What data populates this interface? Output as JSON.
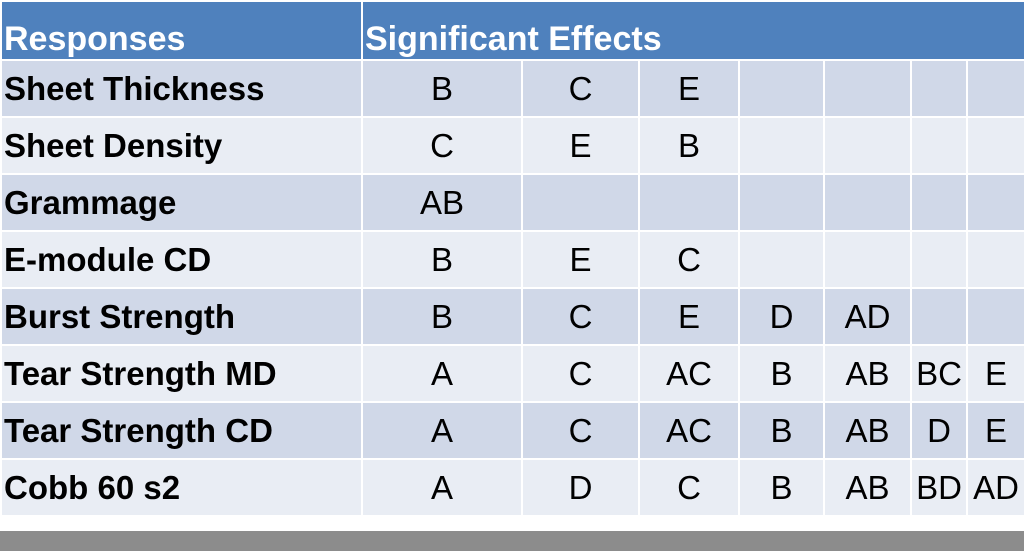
{
  "header": {
    "col1": "Responses",
    "col2": "Significant Effects"
  },
  "rows": [
    {
      "label": "Sheet Thickness",
      "effects": [
        "B",
        "C",
        "E",
        "",
        "",
        "",
        ""
      ]
    },
    {
      "label": "Sheet Density",
      "effects": [
        "C",
        "E",
        "B",
        "",
        "",
        "",
        ""
      ]
    },
    {
      "label": "Grammage",
      "effects": [
        "AB",
        "",
        "",
        "",
        "",
        "",
        ""
      ]
    },
    {
      "label": "E-module CD",
      "effects": [
        "B",
        "E",
        "C",
        "",
        "",
        "",
        ""
      ]
    },
    {
      "label": "Burst Strength",
      "effects": [
        "B",
        "C",
        "E",
        "D",
        "AD",
        "",
        ""
      ]
    },
    {
      "label": "Tear Strength MD",
      "effects": [
        "A",
        "C",
        "AC",
        "B",
        "AB",
        "BC",
        "E"
      ]
    },
    {
      "label": "Tear Strength CD",
      "effects": [
        "A",
        "C",
        "AC",
        "B",
        "AB",
        "D",
        "E"
      ]
    },
    {
      "label": "Cobb 60 s2",
      "effects": [
        "A",
        "D",
        "C",
        "B",
        "AB",
        "BD",
        "AD"
      ]
    }
  ],
  "colors": {
    "header_bg": "#4f81bd",
    "row_dark": "#d0d8e8",
    "row_light": "#e9edf4",
    "bottom_bar": "#8c8c8c"
  }
}
